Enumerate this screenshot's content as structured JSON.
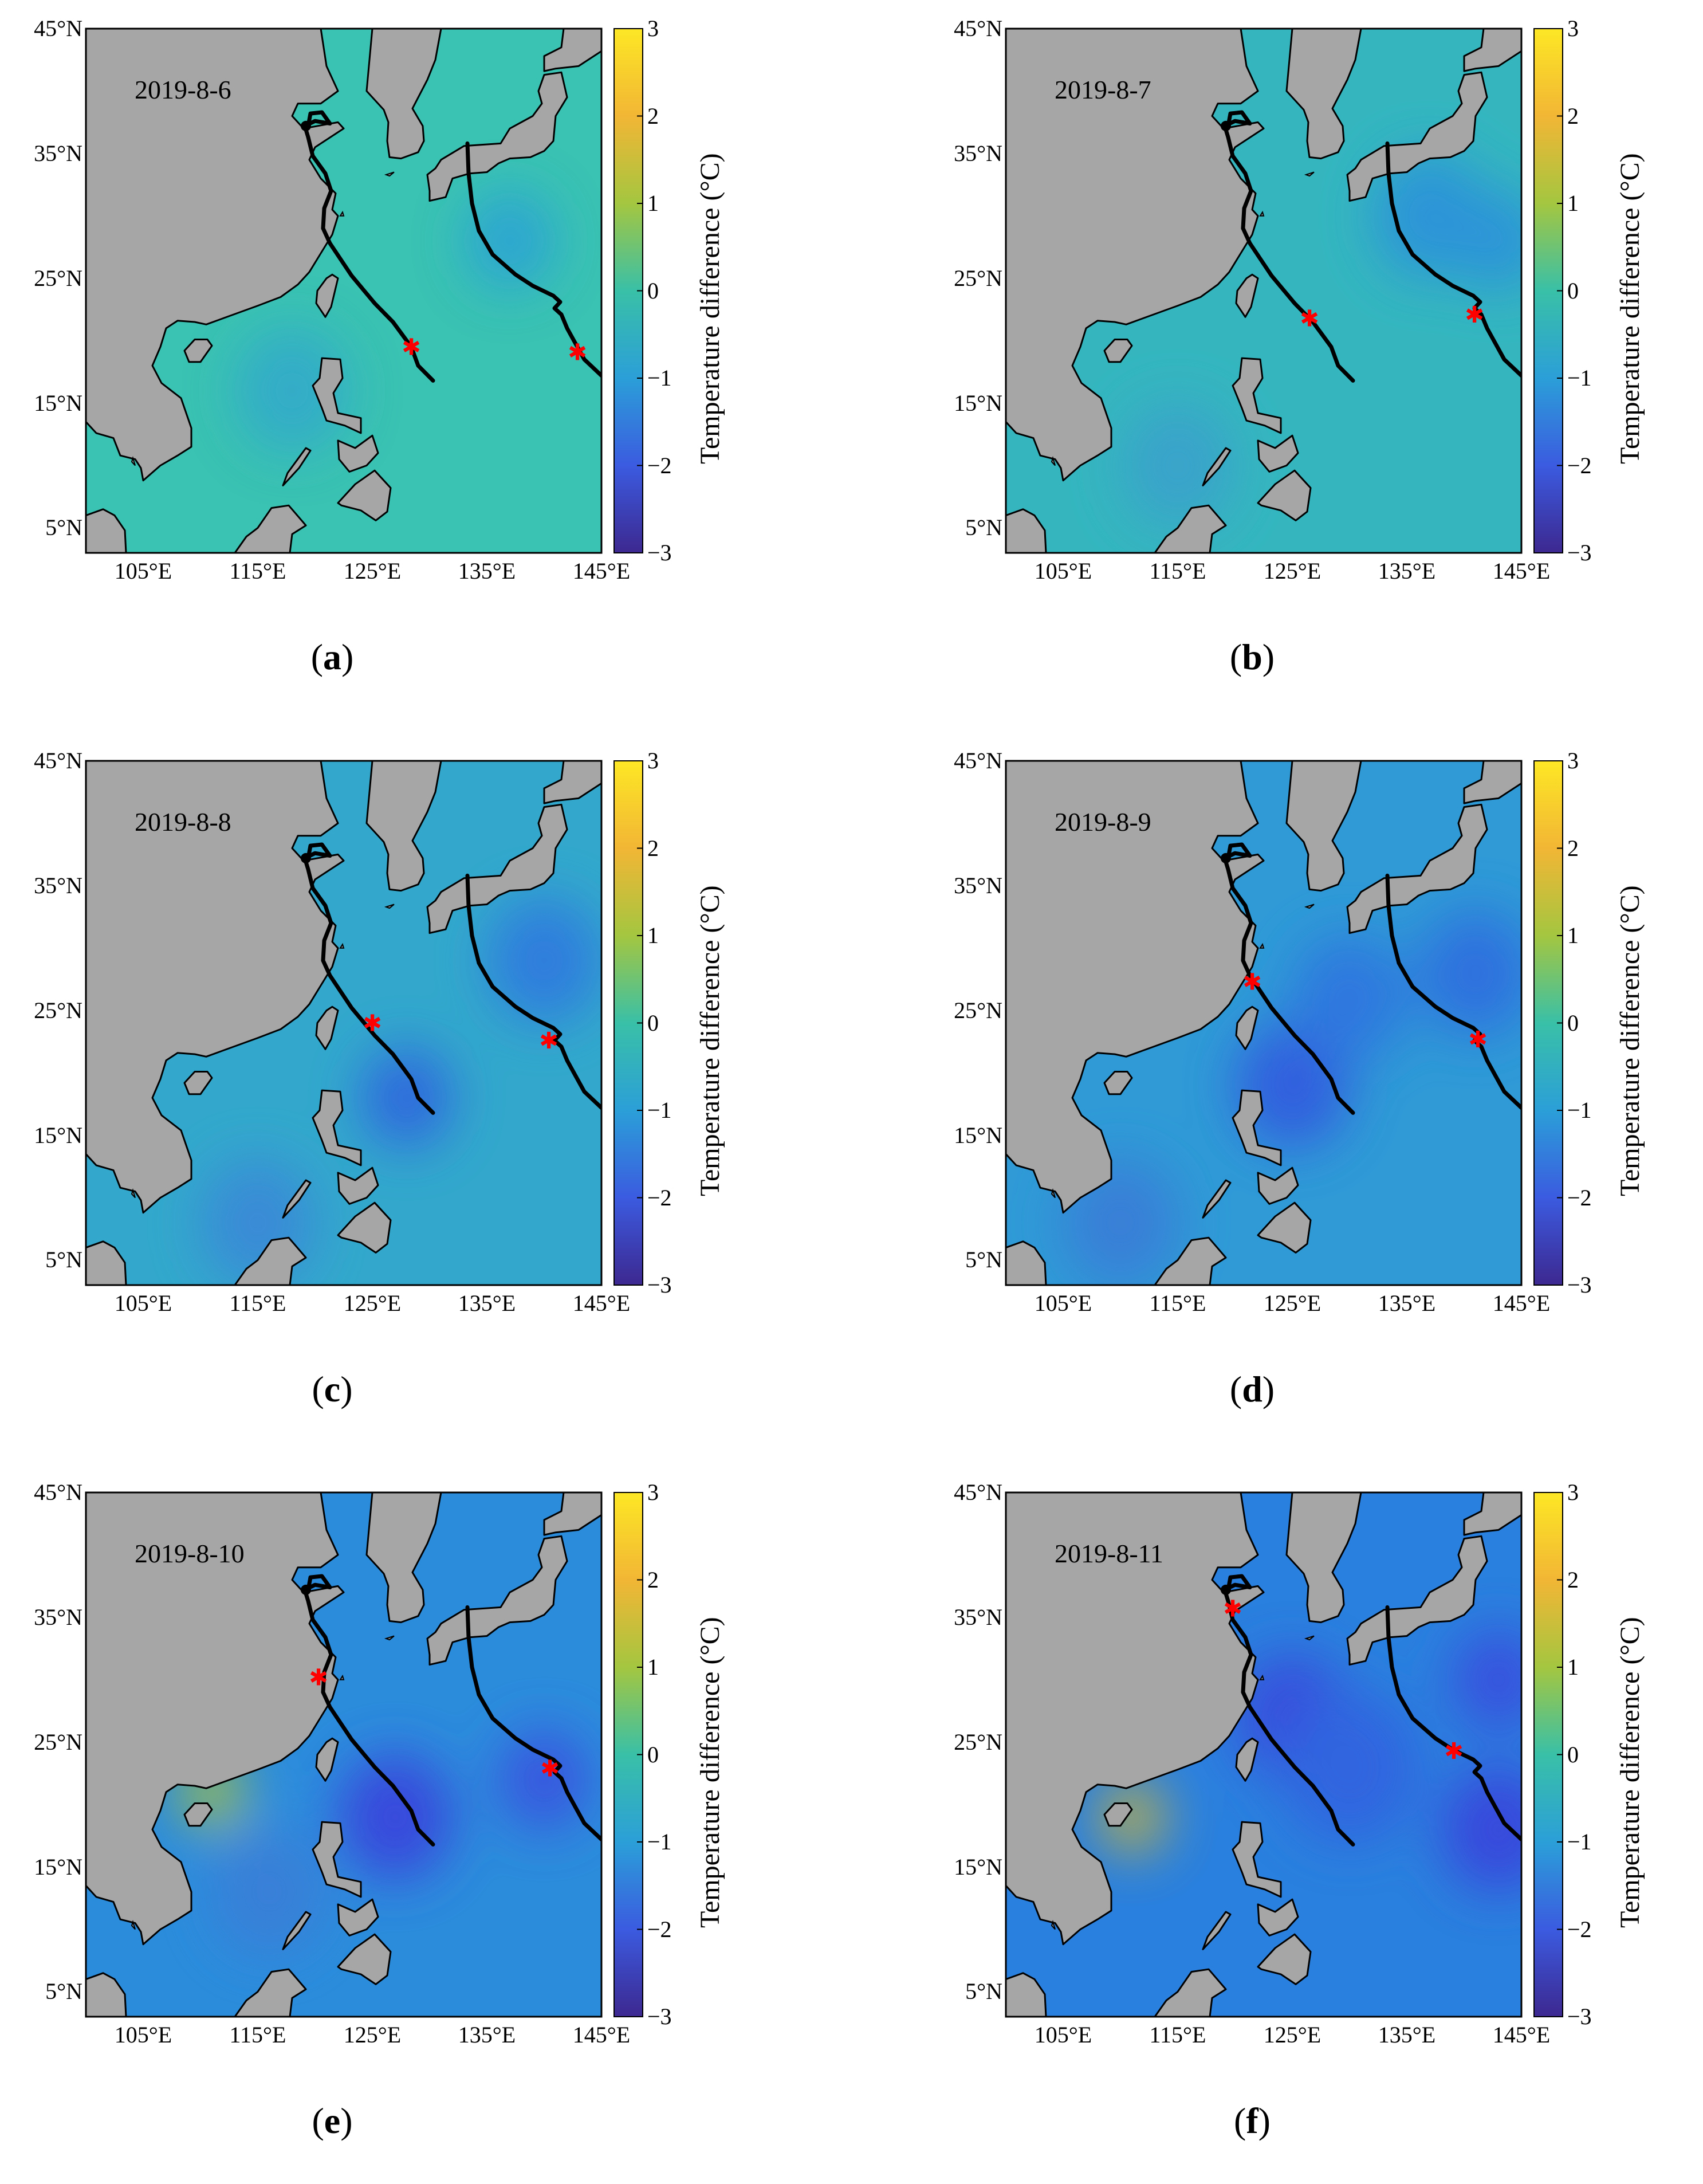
{
  "figure": {
    "colorbar": {
      "label": "Temperature difference (°C)",
      "ticks": [
        "3",
        "2",
        "1",
        "0",
        "−1",
        "−2",
        "−3"
      ],
      "range": [
        -3,
        3
      ],
      "colormap": [
        "#fde725",
        "#f2b635",
        "#a4c640",
        "#39c0a7",
        "#2b9fd8",
        "#3b5be0",
        "#3d2890"
      ]
    },
    "axes": {
      "lat_ticks": [
        "45°N",
        "35°N",
        "25°N",
        "15°N",
        "5°N"
      ],
      "lon_ticks": [
        "105°E",
        "115°E",
        "125°E",
        "135°E",
        "145°E"
      ],
      "lat_range": [
        3,
        45
      ],
      "lon_range": [
        100,
        145
      ]
    },
    "colors": {
      "land": "#a6a6a6",
      "track": "#000000",
      "marker": "#ff0000",
      "ocean_base": "#3cc0b4"
    },
    "panels": [
      {
        "letter": "a",
        "date": "2019-8-6",
        "ocean_tone": "#3ac2b2"
      },
      {
        "letter": "b",
        "date": "2019-8-7",
        "ocean_tone": "#35b6bf"
      },
      {
        "letter": "c",
        "date": "2019-8-8",
        "ocean_tone": "#33a8cc"
      },
      {
        "letter": "d",
        "date": "2019-8-9",
        "ocean_tone": "#2f9ad6"
      },
      {
        "letter": "e",
        "date": "2019-8-10",
        "ocean_tone": "#2c8cdc"
      },
      {
        "letter": "f",
        "date": "2019-8-11",
        "ocean_tone": "#2a80de"
      }
    ]
  }
}
